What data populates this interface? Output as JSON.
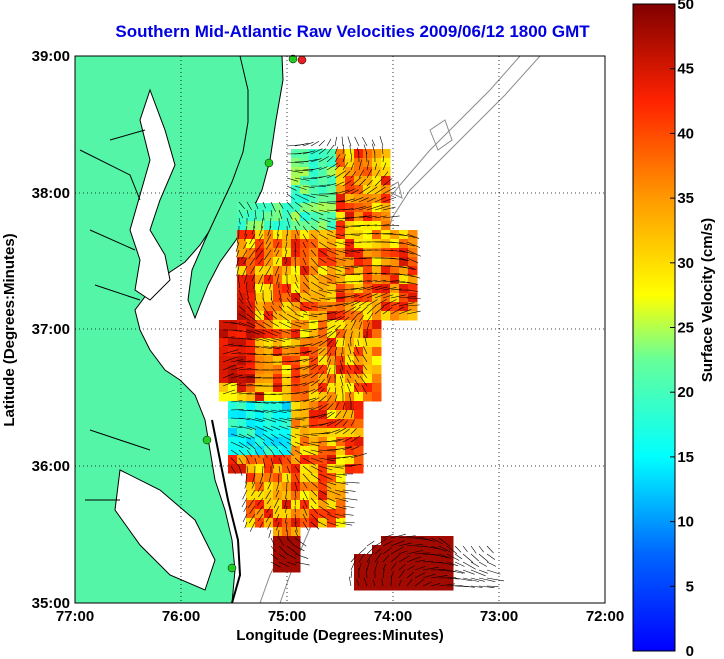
{
  "title": "Southern Mid-Atlantic Raw Velocities 2009/06/12 1800 GMT",
  "x_axis": {
    "label": "Longitude (Degrees:Minutes)",
    "ticks": [
      "77:00",
      "76:00",
      "75:00",
      "74:00",
      "73:00",
      "72:00"
    ]
  },
  "y_axis": {
    "label": "Latitude (Degrees:Minutes)",
    "ticks": [
      "39:00",
      "38:00",
      "37:00",
      "36:00",
      "35:00"
    ]
  },
  "colorbar": {
    "label": "Surface Velocity (cm/s)",
    "ticks": [
      "0",
      "5",
      "10",
      "15",
      "20",
      "25",
      "30",
      "35",
      "40",
      "45",
      "50"
    ],
    "min": 0,
    "max": 50
  },
  "colors": {
    "land": "#55f5a8",
    "coast_outline": "#000000",
    "bathymetry": "#8c8c8c",
    "title": "#0000e0",
    "station": "#22cc22",
    "station_alt": "#e62020"
  },
  "map": {
    "lon_range": [
      -77,
      -72
    ],
    "lat_range": [
      35,
      39
    ],
    "grid": true,
    "vector_color": "#000000",
    "colormap": "jet"
  }
}
